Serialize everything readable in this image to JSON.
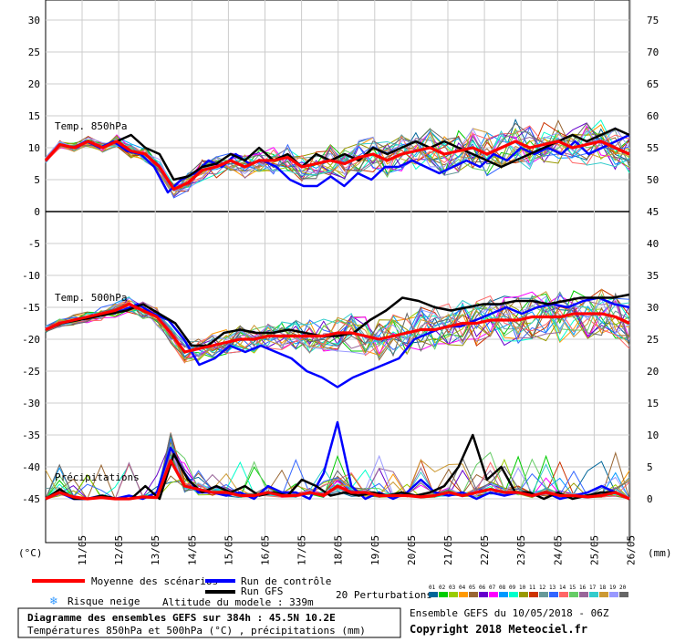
{
  "chart_data": {
    "type": "line",
    "title": "Diagramme des ensembles GEFS sur 384h : 45.5N 10.2E",
    "subtitle": "Températures 850hPa et 500hPa (°C) , précipitations (mm)",
    "ylabel_left": "(°C)",
    "ylabel_right": "(mm)",
    "left_axis_ticks": [
      "30",
      "25",
      "20",
      "15",
      "10",
      "5",
      "0",
      "-5",
      "-10",
      "-15",
      "-20",
      "-25",
      "-30",
      "-35",
      "-40",
      "-45"
    ],
    "right_axis_ticks": [
      "75",
      "70",
      "65",
      "60",
      "55",
      "50",
      "45",
      "40",
      "35",
      "30",
      "25",
      "20",
      "15",
      "10",
      "5",
      "0"
    ],
    "ylim_left": [
      -45,
      30
    ],
    "x_dates": [
      "11/05",
      "12/05",
      "13/05",
      "14/05",
      "15/05",
      "16/05",
      "17/05",
      "18/05",
      "19/05",
      "20/05",
      "21/05",
      "22/05",
      "23/05",
      "24/05",
      "25/05",
      "26/05"
    ],
    "panels": [
      {
        "label": "Temp. 850hPa"
      },
      {
        "label": "Temp. 500hPa"
      },
      {
        "label": "Précipitations"
      }
    ],
    "series": [
      {
        "name": "Moyenne des scénarios",
        "t850": [
          8,
          10.5,
          10,
          11,
          10,
          11,
          9.5,
          9,
          7,
          3.5,
          4.5,
          6.5,
          7,
          8,
          7,
          8,
          8,
          8.5,
          7,
          7.5,
          8,
          7.5,
          8.5,
          9,
          8,
          9,
          9.5,
          10,
          9,
          9.5,
          10,
          9,
          10,
          11,
          10,
          10.5,
          11,
          10,
          10.5,
          11,
          10,
          9
        ],
        "t500": [
          -18.5,
          -17.5,
          -17,
          -16.5,
          -16,
          -15.5,
          -14.5,
          -15.5,
          -16.5,
          -19,
          -22,
          -21.5,
          -21,
          -20.5,
          -20,
          -20,
          -19.5,
          -19.5,
          -19.5,
          -19.5,
          -19.5,
          -19,
          -19,
          -19.5,
          -20,
          -19.5,
          -19,
          -18.5,
          -18.5,
          -18,
          -17.5,
          -17.5,
          -17,
          -17,
          -17,
          -16.5,
          -16.5,
          -16.5,
          -16,
          -16,
          -16,
          -16.5,
          -17.5
        ],
        "precip": [
          0,
          1,
          0.3,
          0,
          0.2,
          0,
          0,
          0.3,
          0.2,
          6,
          2,
          1.5,
          1,
          1,
          0.5,
          0.5,
          1,
          0.5,
          0.5,
          1,
          0.5,
          2,
          1,
          1,
          0.5,
          0.5,
          0.5,
          0.3,
          0.5,
          1,
          0.5,
          1,
          1.5,
          1,
          1,
          0.5,
          1,
          0.5,
          0.5,
          0.3,
          0.5,
          1,
          0
        ]
      },
      {
        "name": "Run de contrôle",
        "t850": [
          8,
          10.5,
          10,
          11,
          10,
          11,
          9.5,
          9,
          7,
          3,
          5,
          6,
          8,
          7,
          9,
          7.5,
          8,
          7,
          5,
          4,
          4,
          5.5,
          4,
          6,
          5,
          7,
          7,
          8,
          7,
          6,
          7,
          8,
          7,
          9,
          8,
          10,
          9,
          10,
          9,
          11,
          9,
          10,
          11,
          12
        ],
        "t500": [
          -18.5,
          -17.5,
          -17,
          -16.5,
          -16,
          -15.5,
          -14.5,
          -16,
          -17,
          -20,
          -24,
          -23,
          -21,
          -22,
          -21,
          -22,
          -23,
          -25,
          -26,
          -27.5,
          -26,
          -25,
          -24,
          -23,
          -20,
          -19,
          -18,
          -18,
          -17,
          -16,
          -15,
          -16,
          -15,
          -14.5,
          -15,
          -14,
          -13.5,
          -14.5,
          -15
        ],
        "precip": [
          0,
          1,
          0,
          0,
          0.5,
          0,
          0.5,
          0,
          1,
          8,
          4,
          1,
          1,
          0.5,
          1,
          0,
          2,
          1,
          1,
          0,
          4,
          12,
          2,
          0,
          1,
          0,
          1,
          3,
          1,
          0.5,
          1,
          0,
          1,
          0.5,
          1,
          0.5,
          1,
          0,
          0.5,
          1,
          2,
          1,
          0
        ]
      },
      {
        "name": "Run GFS",
        "t850": [
          8,
          10.5,
          10,
          11,
          10,
          11,
          12,
          10,
          9,
          5,
          5.5,
          7,
          7.5,
          9,
          8,
          10,
          8,
          9,
          7,
          9,
          8,
          9,
          8,
          10,
          9,
          10,
          11,
          10,
          11,
          10,
          9,
          8,
          7,
          8,
          9,
          10,
          11,
          12,
          11,
          12,
          13,
          12
        ],
        "t500": [
          -18.5,
          -17.5,
          -17,
          -16.5,
          -16,
          -15.5,
          -14.5,
          -16,
          -17.5,
          -21,
          -21,
          -19,
          -18.5,
          -19,
          -19,
          -18.5,
          -19,
          -19.5,
          -19.5,
          -19,
          -17,
          -15.5,
          -13.5,
          -14,
          -15,
          -15.5,
          -15,
          -14.5,
          -14.5,
          -14,
          -14,
          -14.5,
          -14,
          -13.5,
          -13.5,
          -13.5,
          -13
        ],
        "precip": [
          0,
          1.5,
          0,
          0,
          0.5,
          0,
          0,
          2,
          0,
          7,
          3,
          1,
          2,
          1,
          2,
          0.5,
          1,
          0.5,
          3,
          2,
          0.5,
          1,
          0.5,
          1,
          0.5,
          1,
          0.5,
          1,
          2,
          5,
          10,
          3,
          5,
          1,
          1,
          0,
          1,
          0,
          0.5,
          1,
          1,
          0
        ]
      }
    ]
  },
  "legend": {
    "mean_label": "Moyenne des scénarios",
    "control_label": "Run de contrôle",
    "gfs_label": "Run GFS",
    "snow_label": "Risque neige",
    "altitude_label": "Altitude du modele : 339m",
    "perturbations_label": "20 Perturbations",
    "perturbation_numbers": [
      "01",
      "02",
      "03",
      "04",
      "05",
      "06",
      "07",
      "08",
      "09",
      "10",
      "11",
      "12",
      "13",
      "14",
      "15",
      "16",
      "17",
      "18",
      "19",
      "20"
    ],
    "perturbation_colors": [
      "#006699",
      "#00cc00",
      "#99cc00",
      "#ff9900",
      "#996633",
      "#6600cc",
      "#ff00ff",
      "#0099ff",
      "#00ffcc",
      "#999900",
      "#cc3300",
      "#669999",
      "#3366ff",
      "#ff6666",
      "#66cc66",
      "#996699",
      "#33cccc",
      "#cc9933",
      "#9999ff",
      "#666666"
    ],
    "ensemble_info": "Ensemble GEFS du 10/05/2018 - 06Z",
    "copyright": "Copyright 2018 Meteociel.fr",
    "mean_color": "#ff0000",
    "control_color": "#0000ff",
    "gfs_color": "#000000"
  }
}
